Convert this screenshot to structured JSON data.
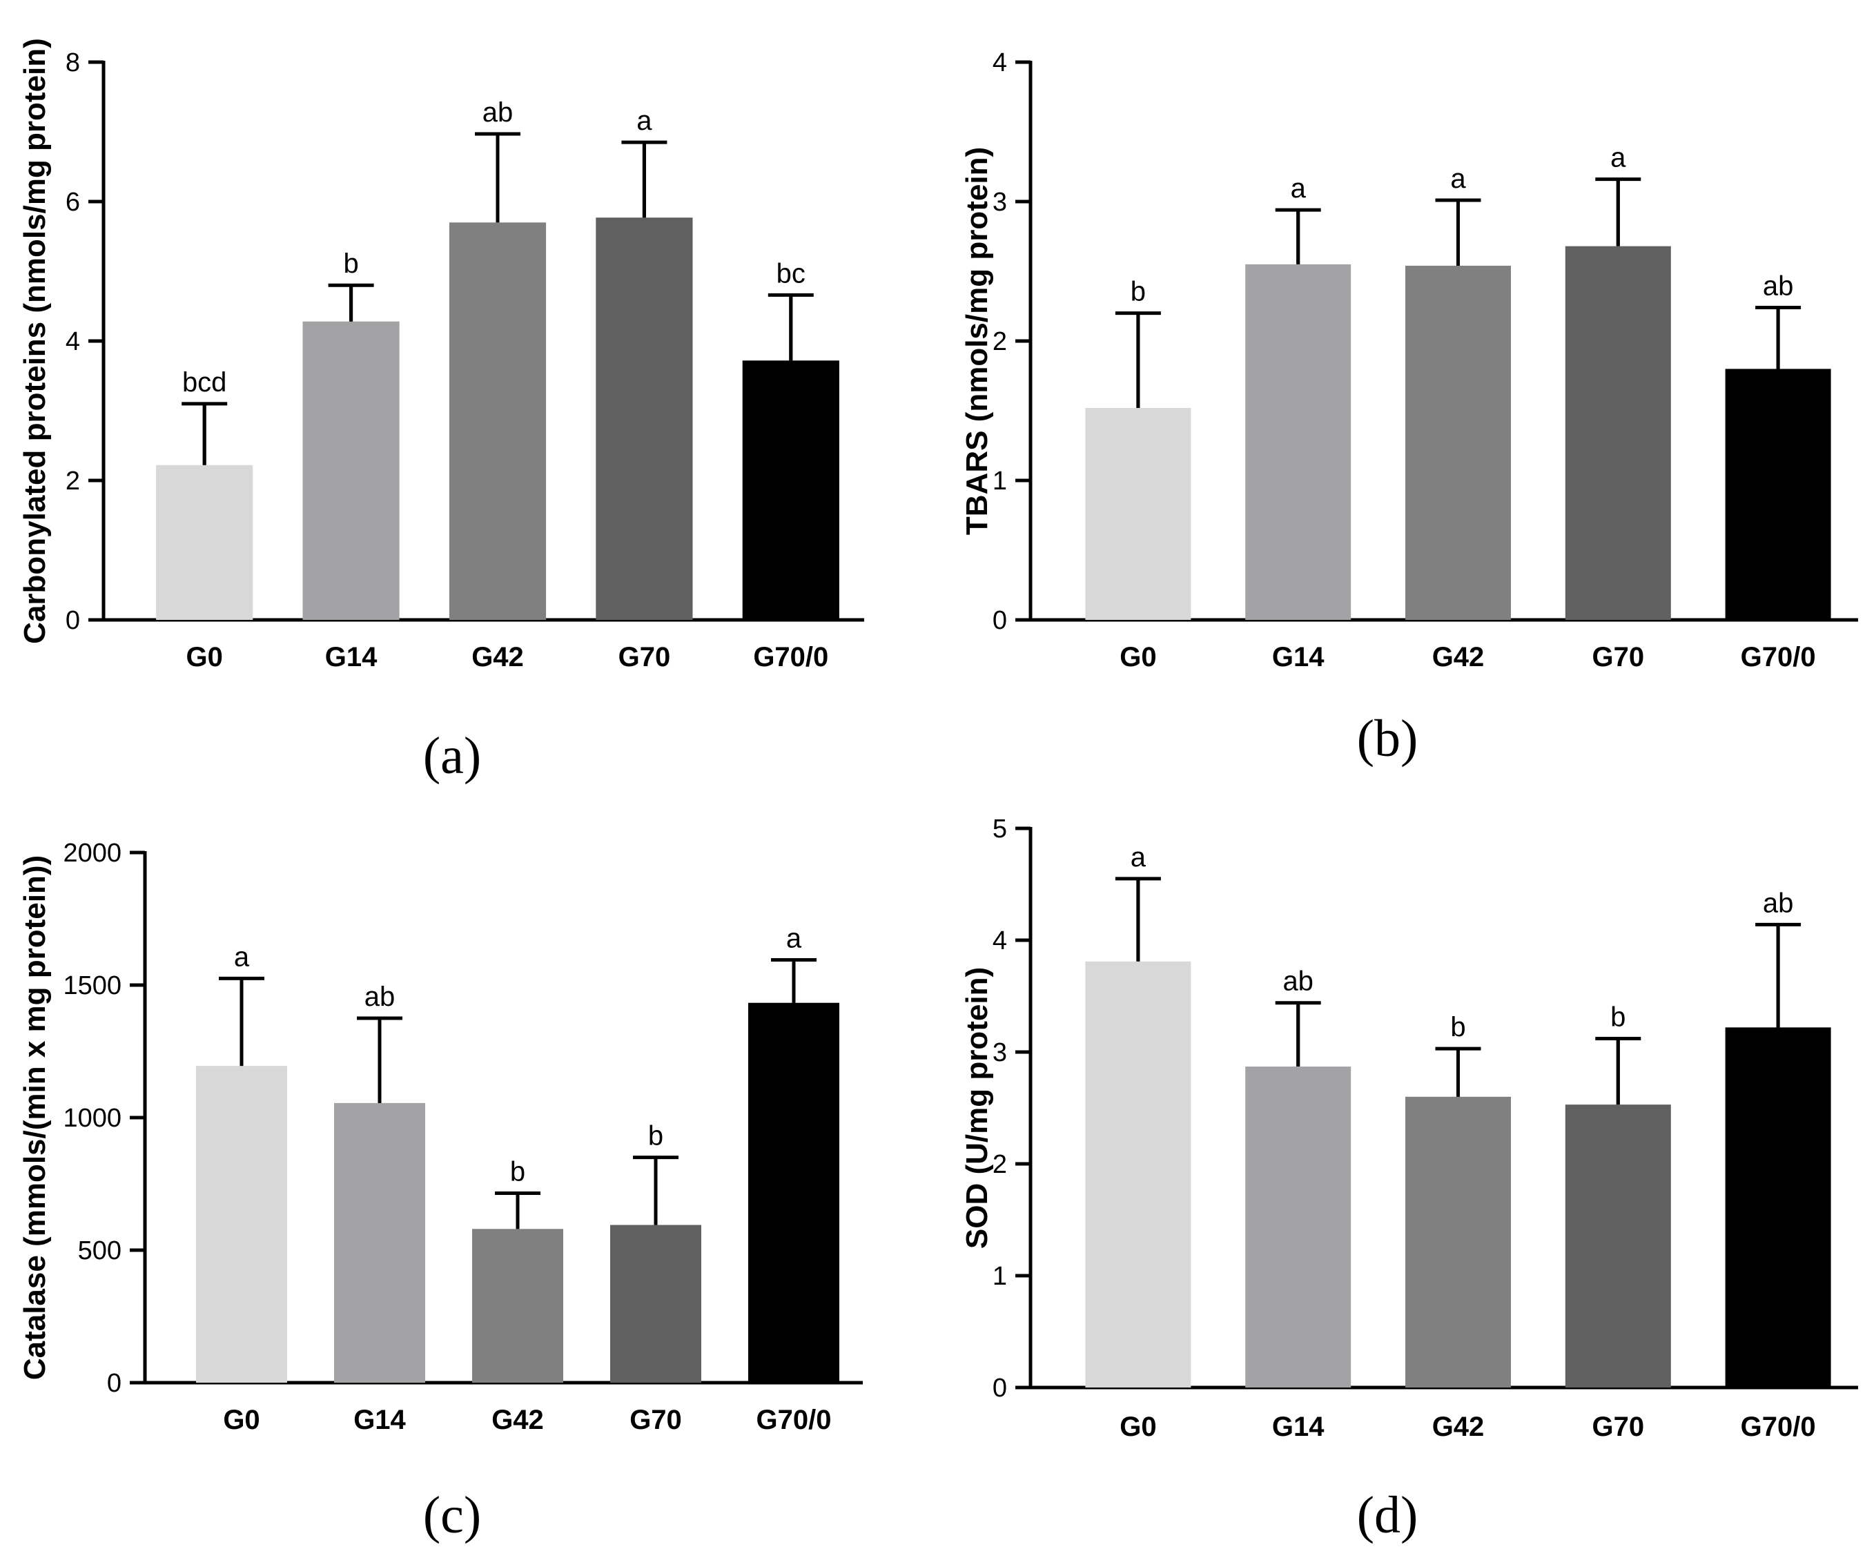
{
  "chart_data": [
    {
      "id": "a",
      "type": "bar",
      "panel_label": "a",
      "ylabel": "Carbonylated proteins (nmols/mg protein)",
      "categories": [
        "G0",
        "G14",
        "G42",
        "G70",
        "G70/0"
      ],
      "values": [
        2.22,
        4.28,
        5.7,
        5.77,
        3.72
      ],
      "errors": [
        0.88,
        0.52,
        1.27,
        1.08,
        0.94
      ],
      "labels": [
        "bcd",
        "b",
        "ab",
        "a",
        "bc"
      ],
      "ylim": [
        0,
        8
      ],
      "yticks": [
        "0",
        "2",
        "4",
        "6",
        "8"
      ],
      "bar_colors": [
        "#d8d8d8",
        "#a3a3a6",
        "#808080",
        "#606060",
        "#000000"
      ]
    },
    {
      "id": "b",
      "type": "bar",
      "panel_label": "b",
      "ylabel": "TBARS (nmols/mg protein)",
      "categories": [
        "G0",
        "G14",
        "G42",
        "G70",
        "G70/0"
      ],
      "values": [
        1.52,
        2.55,
        2.54,
        2.68,
        1.8
      ],
      "errors": [
        0.68,
        0.39,
        0.47,
        0.48,
        0.44
      ],
      "labels": [
        "b",
        "a",
        "a",
        "a",
        "ab"
      ],
      "ylim": [
        0,
        4
      ],
      "yticks": [
        "0",
        "1",
        "2",
        "3",
        "4"
      ],
      "bar_colors": [
        "#d8d8d8",
        "#a3a3a6",
        "#808080",
        "#606060",
        "#000000"
      ]
    },
    {
      "id": "c",
      "type": "bar",
      "panel_label": "c",
      "ylabel": "Catalase (mmols/(min x mg protein))",
      "categories": [
        "G0",
        "G14",
        "G42",
        "G70",
        "G70/0"
      ],
      "values": [
        1195,
        1055,
        580,
        595,
        1433
      ],
      "errors": [
        330,
        320,
        135,
        255,
        162
      ],
      "labels": [
        "a",
        "ab",
        "b",
        "b",
        "a"
      ],
      "ylim": [
        0,
        2000
      ],
      "yticks": [
        "0",
        "500",
        "1000",
        "1500",
        "2000"
      ],
      "bar_colors": [
        "#d8d8d8",
        "#a3a3a6",
        "#808080",
        "#606060",
        "#000000"
      ]
    },
    {
      "id": "d",
      "type": "bar",
      "panel_label": "d",
      "ylabel": "SOD (U/mg protein)",
      "categories": [
        "G0",
        "G14",
        "G42",
        "G70",
        "G70/0"
      ],
      "values": [
        3.81,
        2.87,
        2.6,
        2.53,
        3.22
      ],
      "errors": [
        0.74,
        0.57,
        0.43,
        0.59,
        0.92
      ],
      "labels": [
        "a",
        "ab",
        "b",
        "b",
        "ab"
      ],
      "ylim": [
        0,
        5
      ],
      "yticks": [
        "0",
        "1",
        "2",
        "3",
        "4",
        "5"
      ],
      "bar_colors": [
        "#d8d8d8",
        "#a3a3a6",
        "#808080",
        "#606060",
        "#000000"
      ]
    }
  ]
}
